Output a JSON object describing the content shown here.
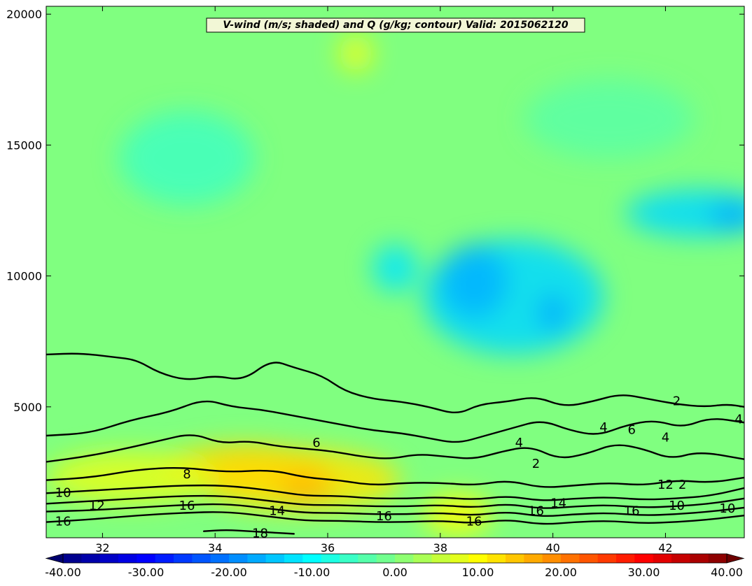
{
  "chart_data": [
    {
      "type": "heatmap",
      "title": "V-wind (m/s; shaded) and Q (g/kg; contour) Valid: 2015062120",
      "xlim": [
        31.0,
        43.4
      ],
      "ylim": [
        0,
        20300
      ],
      "x_ticks": [
        32,
        34,
        36,
        38,
        40,
        42
      ],
      "x_tick_labels": [
        "32",
        "34",
        "36",
        "38",
        "40",
        "42"
      ],
      "y_ticks": [
        5000,
        10000,
        15000,
        20000
      ],
      "y_tick_labels": [
        "5000",
        "10000",
        "15000",
        "20000"
      ],
      "grid": false,
      "shading": {
        "variable": "V-wind",
        "units": "m/s",
        "colormap": "jet",
        "range": [
          -40,
          40
        ],
        "regions": [
          {
            "x_center": 39.3,
            "y_center": 9200,
            "rx": 1.6,
            "ry": 2200,
            "value": -13
          },
          {
            "x_center": 38.6,
            "y_center": 9800,
            "rx": 0.6,
            "ry": 1400,
            "value": -16
          },
          {
            "x_center": 40.0,
            "y_center": 8600,
            "rx": 0.25,
            "ry": 700,
            "value": -17
          },
          {
            "x_center": 37.2,
            "y_center": 10300,
            "rx": 0.4,
            "ry": 900,
            "value": -12
          },
          {
            "x_center": 42.6,
            "y_center": 12400,
            "rx": 1.3,
            "ry": 900,
            "value": -13
          },
          {
            "x_center": 43.2,
            "y_center": 12300,
            "rx": 0.4,
            "ry": 500,
            "value": -17
          },
          {
            "x_center": 35.5,
            "y_center": 2200,
            "rx": 1.8,
            "ry": 1200,
            "value": 12
          },
          {
            "x_center": 34.5,
            "y_center": 2600,
            "rx": 1.5,
            "ry": 1000,
            "value": 13
          },
          {
            "x_center": 35.6,
            "y_center": 1900,
            "rx": 0.5,
            "ry": 400,
            "value": 17
          },
          {
            "x_center": 32.5,
            "y_center": 2300,
            "rx": 1.5,
            "ry": 1000,
            "value": 8
          },
          {
            "x_center": 38.3,
            "y_center": 900,
            "rx": 0.6,
            "ry": 800,
            "value": 10
          },
          {
            "x_center": 36.5,
            "y_center": 18500,
            "rx": 0.3,
            "ry": 700,
            "value": 9
          },
          {
            "x_center": 33.5,
            "y_center": 14500,
            "rx": 1.2,
            "ry": 1800,
            "value": -5
          },
          {
            "x_center": 41.0,
            "y_center": 16000,
            "rx": 1.5,
            "ry": 1500,
            "value": -3
          }
        ]
      },
      "contours": {
        "variable": "Q",
        "units": "g/kg",
        "lines": [
          {
            "level": 2,
            "x": [
              31.0,
              31.6,
              32.2,
              32.6,
              33.0,
              33.5,
              34.0,
              34.5,
              35.0,
              35.4,
              35.9,
              36.3,
              36.8,
              37.3,
              37.8,
              38.3,
              38.7,
              39.2,
              39.7,
              40.2,
              40.7,
              41.2,
              41.7,
              42.2,
              42.7,
              43.1,
              43.4
            ],
            "y": [
              7000,
              7050,
              6900,
              6800,
              6300,
              6000,
              6200,
              6000,
              6800,
              6500,
              6200,
              5600,
              5300,
              5200,
              5000,
              4700,
              5100,
              5200,
              5400,
              5000,
              5200,
              5500,
              5300,
              5100,
              5000,
              5100,
              5000
            ]
          },
          {
            "level": 4,
            "x": [
              31.0,
              31.8,
              32.5,
              33.2,
              33.8,
              34.3,
              34.8,
              35.3,
              35.8,
              36.3,
              36.8,
              37.3,
              37.8,
              38.3,
              38.8,
              39.3,
              39.8,
              40.3,
              40.8,
              41.3,
              41.8,
              42.3,
              42.8,
              43.4
            ],
            "y": [
              3900,
              4000,
              4500,
              4800,
              5300,
              5000,
              4900,
              4700,
              4500,
              4300,
              4100,
              4000,
              3800,
              3600,
              3900,
              4200,
              4500,
              4100,
              3900,
              4300,
              4500,
              4200,
              4600,
              4400
            ]
          },
          {
            "level": 6,
            "x": [
              31.0,
              31.7,
              32.4,
              33.0,
              33.6,
              34.1,
              34.6,
              35.1,
              35.6,
              36.1,
              36.6,
              37.1,
              37.6,
              38.1,
              38.6,
              39.1,
              39.6,
              40.1,
              40.6,
              41.1,
              41.6,
              42.1,
              42.6,
              43.4
            ],
            "y": [
              2900,
              3100,
              3400,
              3700,
              4000,
              3600,
              3700,
              3500,
              3400,
              3300,
              3100,
              3000,
              3200,
              3100,
              3000,
              3300,
              3500,
              3000,
              3200,
              3600,
              3400,
              3000,
              3300,
              3000
            ]
          },
          {
            "level": 8,
            "x": [
              31.0,
              31.8,
              32.6,
              33.4,
              34.2,
              35.0,
              35.6,
              36.2,
              36.8,
              37.4,
              38.0,
              38.6,
              39.2,
              39.8,
              40.4,
              41.0,
              41.6,
              42.2,
              42.8,
              43.4
            ],
            "y": [
              2200,
              2300,
              2600,
              2700,
              2500,
              2600,
              2300,
              2200,
              2000,
              2100,
              2100,
              2000,
              2200,
              1900,
              2000,
              2100,
              2000,
              2200,
              2100,
              2300
            ]
          },
          {
            "level": 10,
            "x": [
              31.0,
              31.8,
              32.6,
              33.4,
              34.2,
              35.0,
              35.6,
              36.2,
              36.8,
              37.4,
              38.0,
              38.6,
              39.2,
              39.8,
              40.4,
              41.0,
              41.6,
              42.2,
              42.8,
              43.4
            ],
            "y": [
              1700,
              1800,
              1900,
              2000,
              2000,
              1800,
              1600,
              1600,
              1500,
              1500,
              1550,
              1450,
              1600,
              1400,
              1500,
              1550,
              1450,
              1500,
              1600,
              1900
            ]
          },
          {
            "level": 12,
            "x": [
              31.0,
              31.8,
              32.6,
              33.4,
              34.2,
              35.0,
              35.6,
              36.2,
              36.8,
              37.4,
              38.0,
              38.6,
              39.2,
              39.8,
              40.4,
              41.0,
              41.6,
              42.2,
              42.8,
              43.4
            ],
            "y": [
              1300,
              1400,
              1500,
              1600,
              1600,
              1400,
              1250,
              1250,
              1200,
              1200,
              1250,
              1150,
              1300,
              1100,
              1200,
              1250,
              1150,
              1200,
              1300,
              1500
            ]
          },
          {
            "level": 14,
            "x": [
              31.0,
              31.8,
              32.6,
              33.4,
              34.2,
              35.0,
              35.6,
              36.2,
              36.8,
              37.4,
              38.0,
              38.6,
              39.2,
              39.8,
              40.4,
              41.0,
              41.6,
              42.2,
              42.8,
              43.4
            ],
            "y": [
              1000,
              1050,
              1150,
              1250,
              1300,
              1100,
              950,
              950,
              900,
              900,
              950,
              850,
              1000,
              800,
              900,
              950,
              850,
              900,
              1000,
              1150
            ]
          },
          {
            "level": 16,
            "x": [
              31.0,
              31.8,
              32.6,
              33.4,
              34.2,
              35.0,
              35.6,
              36.2,
              36.8,
              37.4,
              38.0,
              38.6,
              39.2,
              39.8,
              40.4,
              41.0,
              41.6,
              42.2,
              42.8,
              43.4
            ],
            "y": [
              600,
              700,
              850,
              950,
              1000,
              800,
              650,
              650,
              600,
              600,
              650,
              550,
              700,
              500,
              600,
              650,
              550,
              600,
              700,
              850
            ]
          },
          {
            "level": 18,
            "x": [
              33.8,
              34.2,
              34.6,
              35.0,
              35.4
            ],
            "y": [
              250,
              300,
              250,
              200,
              150
            ]
          }
        ],
        "labels": [
          {
            "text": "2",
            "x": 42.2,
            "y": 5200
          },
          {
            "text": "4",
            "x": 39.4,
            "y": 3600
          },
          {
            "text": "4",
            "x": 40.9,
            "y": 4200
          },
          {
            "text": "4",
            "x": 42.0,
            "y": 3800
          },
          {
            "text": "6",
            "x": 35.8,
            "y": 3600
          },
          {
            "text": "6",
            "x": 41.4,
            "y": 4100
          },
          {
            "text": "2",
            "x": 39.7,
            "y": 2800
          },
          {
            "text": "8",
            "x": 33.5,
            "y": 2400
          },
          {
            "text": "10",
            "x": 31.3,
            "y": 1700
          },
          {
            "text": "12",
            "x": 31.9,
            "y": 1200
          },
          {
            "text": "16",
            "x": 31.3,
            "y": 600
          },
          {
            "text": "16",
            "x": 33.5,
            "y": 1200
          },
          {
            "text": "14",
            "x": 35.1,
            "y": 1000
          },
          {
            "text": "18",
            "x": 34.8,
            "y": 150
          },
          {
            "text": "16",
            "x": 37.0,
            "y": 800
          },
          {
            "text": "16",
            "x": 38.6,
            "y": 600
          },
          {
            "text": "16",
            "x": 39.7,
            "y": 1000
          },
          {
            "text": "14",
            "x": 40.1,
            "y": 1300
          },
          {
            "text": "16",
            "x": 41.4,
            "y": 1000
          },
          {
            "text": "10",
            "x": 42.2,
            "y": 1200
          },
          {
            "text": "12",
            "x": 42.0,
            "y": 2000
          },
          {
            "text": "2",
            "x": 42.3,
            "y": 2000
          },
          {
            "text": "10",
            "x": 43.1,
            "y": 1100
          },
          {
            "text": "4",
            "x": 43.3,
            "y": 4500
          }
        ]
      }
    },
    {
      "type": "heatmap",
      "colorbar": true,
      "range": [
        -40,
        40
      ],
      "levels": 36,
      "tick_values": [
        -40,
        -30,
        -20,
        -10,
        0,
        10,
        20,
        30,
        40
      ],
      "tick_labels": [
        "-40.00",
        "-30.00",
        "-20.00",
        "-10.00",
        "0.00",
        "10.00",
        "20.00",
        "30.00",
        "40.00"
      ],
      "colormap": "jet"
    }
  ]
}
